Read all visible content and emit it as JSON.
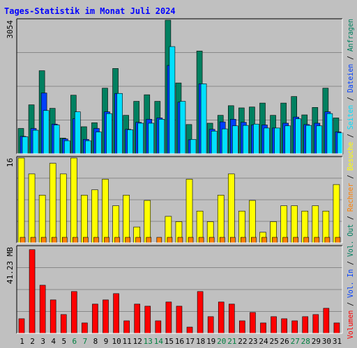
{
  "chart_data": {
    "type": "bar",
    "title": "Tages-Statistik im Monat Juli 2024",
    "categories": [
      "1",
      "2",
      "3",
      "4",
      "5",
      "6",
      "7",
      "8",
      "9",
      "10",
      "11",
      "12",
      "13",
      "14",
      "15",
      "16",
      "17",
      "18",
      "19",
      "20",
      "21",
      "22",
      "23",
      "24",
      "25",
      "26",
      "27",
      "28",
      "29",
      "30",
      "31"
    ],
    "weekend_days": [
      "6",
      "7",
      "13",
      "14",
      "20",
      "21",
      "27",
      "28"
    ],
    "panels": [
      {
        "name": "top",
        "max_label": "3054",
        "ylim": [
          0,
          3054
        ],
        "grid": true,
        "series": [
          {
            "name": "Anfragen",
            "color": "#008060",
            "values": [
              580,
              1120,
              1900,
              1040,
              360,
              1340,
              620,
              710,
              1500,
              1950,
              880,
              1200,
              1350,
              1200,
              3054,
              1620,
              670,
              2350,
              700,
              880,
              1100,
              1050,
              1070,
              1160,
              880,
              1160,
              1310,
              890,
              1060,
              1500,
              820
            ]
          },
          {
            "name": "Dateien",
            "color": "#0040ff",
            "values": [
              400,
              580,
              1390,
              680,
              340,
              800,
              330,
              580,
              960,
              1380,
              560,
              720,
              790,
              820,
              2020,
              1180,
              320,
              1600,
              560,
              730,
              790,
              720,
              660,
              660,
              590,
              700,
              840,
              670,
              700,
              960,
              500
            ]
          },
          {
            "name": "Seiten",
            "color": "#00e0ff",
            "values": [
              390,
              540,
              990,
              660,
              300,
              960,
              300,
              500,
              920,
              1380,
              550,
              700,
              700,
              790,
              2450,
              1200,
              330,
              1600,
              520,
              570,
              640,
              650,
              680,
              590,
              590,
              640,
              800,
              650,
              640,
              920,
              480
            ]
          }
        ]
      },
      {
        "name": "middle",
        "max_label": "16",
        "ylim": [
          0,
          16
        ],
        "grid": true,
        "series": [
          {
            "name": "Besuche",
            "color": "#ffff00",
            "values": [
              16,
              13,
              9,
              15,
              13,
              16,
              9,
              10,
              12,
              7,
              9,
              3,
              8,
              0,
              5,
              4,
              12,
              6,
              4,
              9,
              13,
              6,
              8,
              2,
              4,
              7,
              7,
              6,
              7,
              6,
              11
            ]
          },
          {
            "name": "Rechner",
            "color": "#ff8000",
            "values": [
              1,
              1,
              1,
              1,
              1,
              1,
              1,
              1,
              1,
              1,
              1,
              1,
              1,
              1,
              1,
              1,
              1,
              1,
              1,
              1,
              1,
              1,
              1,
              1,
              1,
              1,
              1,
              1,
              1,
              1,
              1
            ]
          }
        ]
      },
      {
        "name": "bottom",
        "max_label": "41.23 MB",
        "ylim": [
          0,
          41.23
        ],
        "grid": true,
        "series": [
          {
            "name": "Volumen",
            "color": "#ff0000",
            "values": [
              7,
              40,
              23,
              16,
              9,
              20,
              5,
              14,
              16,
              19,
              6,
              14,
              13,
              6,
              15,
              13,
              3,
              20,
              8,
              15,
              14,
              6,
              10,
              5,
              8,
              7,
              6,
              8,
              9,
              12,
              5
            ]
          }
        ]
      }
    ],
    "right_label_items": [
      {
        "text": "Volumen",
        "color": "#ff0000"
      },
      {
        "text": " / ",
        "color": "#000000"
      },
      {
        "text": "Vol. In",
        "color": "#0040ff"
      },
      {
        "text": " / ",
        "color": "#000000"
      },
      {
        "text": "Vol. Out",
        "color": "#008060"
      },
      {
        "text": " / ",
        "color": "#000000"
      },
      {
        "text": "Rechner",
        "color": "#ff8000"
      },
      {
        "text": " / ",
        "color": "#000000"
      },
      {
        "text": "Besuche",
        "color": "#ffff00"
      },
      {
        "text": " / ",
        "color": "#000000"
      },
      {
        "text": "Seiten",
        "color": "#00e0ff"
      },
      {
        "text": " / ",
        "color": "#000000"
      },
      {
        "text": "Dateien",
        "color": "#0040ff"
      },
      {
        "text": " / ",
        "color": "#000000"
      },
      {
        "text": "Anfragen",
        "color": "#008060"
      }
    ],
    "colors": {
      "title": "#0000ff",
      "weekend_tick": "#008040",
      "weekday_tick": "#000000",
      "background": "#c0c0c0"
    }
  }
}
